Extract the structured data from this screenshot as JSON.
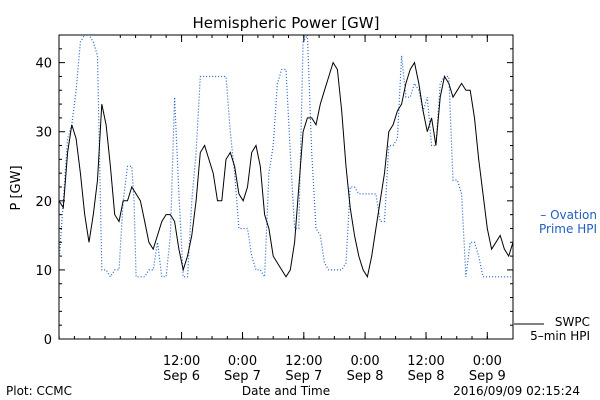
{
  "chart_data": {
    "type": "line",
    "title": "Hemispheric Power [GW]",
    "ylabel": "P [GW]",
    "xlabel": "Date and Time",
    "ylim": [
      0,
      44
    ],
    "yticks": [
      0,
      10,
      20,
      30,
      40
    ],
    "xlim": [
      0,
      100
    ],
    "xticks": [
      {
        "x": 16.7,
        "time": "12:00",
        "date": "Sep 6"
      },
      {
        "x": 33.3,
        "time": "0:00",
        "date": "Sep 7"
      },
      {
        "x": 50.0,
        "time": "12:00",
        "date": "Sep 7"
      },
      {
        "x": 66.7,
        "time": "0:00",
        "date": "Sep 8"
      },
      {
        "x": 83.3,
        "time": "12:00",
        "date": "Sep 8"
      },
      {
        "x": 100.0,
        "time": "0:00",
        "date": "Sep 9"
      }
    ],
    "series": [
      {
        "name": "Ovation Prime HPI",
        "legend_label": [
          "– Ovation",
          "Prime HPI"
        ],
        "color": "#2060c0",
        "style": "dotted",
        "points": [
          [
            0,
            11
          ],
          [
            1,
            20
          ],
          [
            2,
            29
          ],
          [
            3,
            31
          ],
          [
            4,
            36
          ],
          [
            5,
            43
          ],
          [
            6,
            44
          ],
          [
            7,
            44
          ],
          [
            8,
            43
          ],
          [
            9,
            41
          ],
          [
            10,
            10
          ],
          [
            11,
            10
          ],
          [
            12,
            9
          ],
          [
            13,
            10
          ],
          [
            14,
            10
          ],
          [
            15,
            20
          ],
          [
            16,
            25
          ],
          [
            17,
            25
          ],
          [
            17.5,
            20
          ],
          [
            18,
            9
          ],
          [
            19,
            9
          ],
          [
            20,
            9
          ],
          [
            21,
            10
          ],
          [
            22,
            10
          ],
          [
            23,
            14
          ],
          [
            24,
            9
          ],
          [
            25,
            9
          ],
          [
            26,
            15
          ],
          [
            27,
            35
          ],
          [
            28,
            21
          ],
          [
            29,
            9
          ],
          [
            30,
            9
          ],
          [
            31,
            20
          ],
          [
            32,
            27
          ],
          [
            33,
            38
          ],
          [
            34,
            38
          ],
          [
            35,
            38
          ],
          [
            36,
            38
          ],
          [
            37,
            38
          ],
          [
            38,
            38
          ],
          [
            39,
            38
          ],
          [
            40,
            30
          ],
          [
            41,
            24
          ],
          [
            42,
            16
          ],
          [
            43,
            16
          ],
          [
            44,
            16
          ],
          [
            45,
            12
          ],
          [
            46,
            10
          ],
          [
            47,
            10
          ],
          [
            48,
            9
          ],
          [
            49,
            24
          ],
          [
            50,
            28
          ],
          [
            51,
            37
          ],
          [
            52,
            39
          ],
          [
            53,
            39
          ],
          [
            54,
            27
          ],
          [
            55,
            16
          ],
          [
            56,
            16
          ],
          [
            57,
            43
          ],
          [
            58,
            44
          ],
          [
            59,
            27
          ],
          [
            60,
            16
          ],
          [
            61,
            15
          ],
          [
            62,
            11
          ],
          [
            63,
            10
          ],
          [
            64,
            10
          ],
          [
            65,
            10
          ],
          [
            66,
            10
          ],
          [
            67,
            11
          ],
          [
            68,
            22
          ],
          [
            69,
            22
          ],
          [
            70,
            21
          ],
          [
            71,
            21
          ],
          [
            72,
            21
          ],
          [
            73,
            21
          ],
          [
            74,
            21
          ],
          [
            75,
            17
          ],
          [
            76,
            17
          ],
          [
            77,
            28
          ],
          [
            78,
            28
          ],
          [
            79,
            29
          ],
          [
            80,
            41
          ],
          [
            81,
            35
          ],
          [
            82,
            35
          ],
          [
            83,
            37
          ],
          [
            84,
            36
          ],
          [
            85,
            33
          ],
          [
            86,
            35
          ],
          [
            87,
            28
          ],
          [
            88,
            28
          ],
          [
            89,
            37
          ],
          [
            90,
            38
          ],
          [
            91,
            38
          ],
          [
            92,
            23
          ],
          [
            93,
            23
          ],
          [
            94,
            21
          ],
          [
            95,
            9
          ],
          [
            96,
            14
          ],
          [
            97,
            14
          ],
          [
            98,
            12
          ],
          [
            99,
            9
          ],
          [
            100,
            9
          ],
          [
            101,
            9
          ],
          [
            102,
            9
          ],
          [
            103,
            9
          ],
          [
            104,
            9
          ],
          [
            105,
            9
          ],
          [
            106,
            9
          ]
        ]
      },
      {
        "name": "",
        "color": "#000000",
        "style": "solid",
        "points": [
          [
            0,
            20
          ],
          [
            1,
            19
          ],
          [
            2,
            27
          ],
          [
            3,
            31
          ],
          [
            4,
            29
          ],
          [
            5,
            24
          ],
          [
            6,
            18
          ],
          [
            7,
            14
          ],
          [
            8,
            18
          ],
          [
            9,
            23
          ],
          [
            10,
            34
          ],
          [
            11,
            31
          ],
          [
            12,
            25
          ],
          [
            13,
            18
          ],
          [
            14,
            17
          ],
          [
            15,
            20
          ],
          [
            16,
            20
          ],
          [
            17,
            22
          ],
          [
            18,
            21
          ],
          [
            19,
            20
          ],
          [
            20,
            17
          ],
          [
            21,
            14
          ],
          [
            22,
            13
          ],
          [
            23,
            15
          ],
          [
            24,
            17
          ],
          [
            25,
            18
          ],
          [
            26,
            18
          ],
          [
            27,
            17
          ],
          [
            28,
            13
          ],
          [
            29,
            10
          ],
          [
            30,
            12
          ],
          [
            31,
            15
          ],
          [
            32,
            20
          ],
          [
            33,
            27
          ],
          [
            34,
            28
          ],
          [
            35,
            26
          ],
          [
            36,
            24
          ],
          [
            37,
            20
          ],
          [
            38,
            20
          ],
          [
            39,
            26
          ],
          [
            40,
            27
          ],
          [
            41,
            25
          ],
          [
            42,
            21
          ],
          [
            43,
            20
          ],
          [
            44,
            22
          ],
          [
            45,
            27
          ],
          [
            46,
            28
          ],
          [
            47,
            25
          ],
          [
            48,
            18
          ],
          [
            49,
            16
          ],
          [
            50,
            12
          ],
          [
            51,
            11
          ],
          [
            52,
            10
          ],
          [
            53,
            9
          ],
          [
            54,
            10
          ],
          [
            55,
            14
          ],
          [
            56,
            22
          ],
          [
            57,
            30
          ],
          [
            58,
            32
          ],
          [
            59,
            32
          ],
          [
            60,
            31
          ],
          [
            61,
            34
          ],
          [
            62,
            36
          ],
          [
            63,
            38
          ],
          [
            64,
            40
          ],
          [
            65,
            39
          ],
          [
            66,
            33
          ],
          [
            67,
            25
          ],
          [
            68,
            19
          ],
          [
            69,
            15
          ],
          [
            70,
            12
          ],
          [
            71,
            10
          ],
          [
            72,
            9
          ],
          [
            73,
            12
          ],
          [
            74,
            16
          ],
          [
            75,
            20
          ],
          [
            76,
            24
          ],
          [
            77,
            30
          ],
          [
            78,
            31
          ],
          [
            79,
            33
          ],
          [
            80,
            34
          ],
          [
            81,
            37
          ],
          [
            82,
            39
          ],
          [
            83,
            40
          ],
          [
            84,
            37
          ],
          [
            85,
            33
          ],
          [
            86,
            30
          ],
          [
            87,
            32
          ],
          [
            88,
            28
          ],
          [
            89,
            35
          ],
          [
            90,
            38
          ],
          [
            91,
            37
          ],
          [
            92,
            35
          ],
          [
            93,
            36
          ],
          [
            94,
            37
          ],
          [
            95,
            36
          ],
          [
            96,
            36
          ],
          [
            97,
            32
          ],
          [
            98,
            26
          ],
          [
            99,
            21
          ],
          [
            100,
            16
          ],
          [
            101,
            13
          ],
          [
            102,
            14
          ],
          [
            103,
            15
          ],
          [
            104,
            13
          ],
          [
            105,
            12
          ],
          [
            106,
            14
          ]
        ]
      }
    ],
    "right_labels": [
      {
        "lines": [
          "– Ovation",
          "Prime HPI"
        ],
        "color": "#2060c0"
      },
      {
        "lines": [
          "SWPC",
          "5–min HPI"
        ],
        "color": "#000000"
      }
    ]
  },
  "footer": {
    "left": "Plot: CCMC",
    "center": "Date and Time",
    "right": "2016/09/09 02:15:24"
  }
}
